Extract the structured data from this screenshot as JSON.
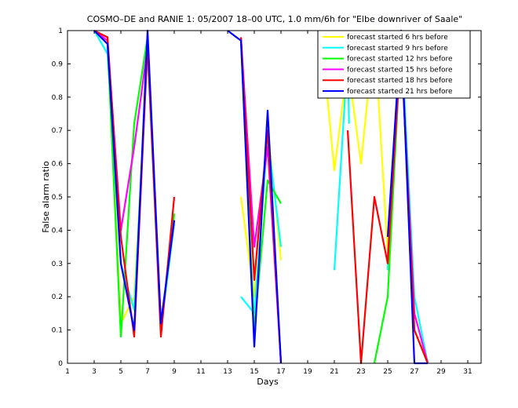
{
  "chart_data": {
    "type": "line",
    "title": "COSMO–DE and RANIE 1: 05/2007 18–00 UTC, 1.0 mm/6h for \"Elbe downriver of Saale\"",
    "xlabel": "Days",
    "ylabel": "False alarm ratio",
    "xlim": [
      1,
      32
    ],
    "ylim": [
      0,
      1
    ],
    "xticks": [
      "1",
      "3",
      "5",
      "7",
      "9",
      "11",
      "13",
      "15",
      "17",
      "19",
      "21",
      "23",
      "25",
      "27",
      "29",
      "31"
    ],
    "yticks": [
      "0",
      "0.1",
      "0.2",
      "0.3",
      "0.4",
      "0.5",
      "0.6",
      "0.7",
      "0.8",
      "0.9",
      "1"
    ],
    "legend_position": "top-right",
    "series": [
      {
        "name": "forecast started 6 hrs before",
        "color": "#ffff00",
        "segments": [
          [
            [
              3,
              1
            ],
            [
              4,
              0.97
            ],
            [
              5,
              0.12
            ],
            [
              6,
              0.2
            ],
            [
              7,
              0.93
            ],
            [
              8,
              0.1
            ],
            [
              9,
              0.45
            ]
          ],
          [
            [
              14,
              0.5
            ],
            [
              15,
              0.2
            ],
            [
              16,
              0.72
            ],
            [
              17,
              0.31
            ]
          ],
          [
            [
              20,
              1
            ],
            [
              21,
              0.58
            ],
            [
              22,
              0.9
            ],
            [
              23,
              0.6
            ],
            [
              24,
              1
            ],
            [
              25,
              0.33
            ],
            [
              26,
              1
            ],
            [
              27,
              0.2
            ],
            [
              28,
              0
            ]
          ]
        ]
      },
      {
        "name": "forecast started 9 hrs before",
        "color": "#00ffff",
        "segments": [
          [
            [
              3,
              1
            ],
            [
              4,
              0.93
            ],
            [
              5,
              0.3
            ],
            [
              6,
              0.16
            ],
            [
              7,
              0.94
            ],
            [
              8,
              0.1
            ],
            [
              9,
              0.42
            ]
          ],
          [
            [
              14,
              0.2
            ],
            [
              15,
              0.15
            ],
            [
              16,
              0.68
            ],
            [
              17,
              0.35
            ]
          ],
          [
            [
              21,
              0.28
            ],
            [
              22,
              0.93
            ],
            [
              22.1,
              0.72
            ]
          ],
          [
            [
              25,
              0.28
            ],
            [
              26,
              1
            ],
            [
              27,
              0.2
            ],
            [
              28,
              0
            ]
          ]
        ]
      },
      {
        "name": "forecast started 12 hrs before",
        "color": "#00ff00",
        "segments": [
          [
            [
              3,
              1
            ],
            [
              4,
              0.96
            ],
            [
              5,
              0.08
            ],
            [
              6,
              0.72
            ],
            [
              7,
              0.98
            ],
            [
              8,
              0.1
            ],
            [
              9,
              0.45
            ]
          ],
          [
            [
              14,
              0.97
            ],
            [
              15,
              0.1
            ],
            [
              16,
              0.55
            ],
            [
              17,
              0.48
            ]
          ],
          [
            [
              24,
              0
            ],
            [
              25,
              0.2
            ],
            [
              26,
              0.97
            ],
            [
              27,
              0.1
            ],
            [
              28,
              0
            ]
          ]
        ]
      },
      {
        "name": "forecast started 15 hrs before",
        "color": "#ff00ff",
        "segments": [
          [
            [
              3,
              1
            ],
            [
              4,
              0.97
            ],
            [
              5,
              0.4
            ],
            [
              6,
              0.65
            ],
            [
              7,
              0.95
            ],
            [
              8,
              0.12
            ],
            [
              9,
              0.43
            ]
          ],
          [
            [
              14,
              0.98
            ],
            [
              15,
              0.35
            ],
            [
              16,
              0.65
            ],
            [
              17,
              0
            ]
          ],
          [
            [
              25,
              0.32
            ],
            [
              26,
              0.95
            ],
            [
              27,
              0.15
            ],
            [
              28,
              0
            ]
          ]
        ]
      },
      {
        "name": "forecast started 18 hrs before",
        "color": "#ff0000",
        "segments": [
          [
            [
              3,
              1
            ],
            [
              4,
              0.98
            ],
            [
              5,
              0.38
            ],
            [
              6,
              0.08
            ],
            [
              7,
              0.96
            ],
            [
              8,
              0.08
            ],
            [
              9,
              0.5
            ]
          ],
          [
            [
              14,
              0.98
            ],
            [
              15,
              0.25
            ],
            [
              16,
              0.7
            ],
            [
              17,
              0
            ]
          ],
          [
            [
              22,
              0.7
            ],
            [
              23,
              0
            ],
            [
              24,
              0.5
            ],
            [
              25,
              0.3
            ],
            [
              26,
              0.98
            ],
            [
              27,
              0.1
            ],
            [
              28,
              0
            ]
          ]
        ]
      },
      {
        "name": "forecast started 21 hrs before",
        "color": "#0000ff",
        "segments": [
          [
            [
              3,
              1
            ],
            [
              4,
              0.96
            ],
            [
              5,
              0.3
            ],
            [
              6,
              0.1
            ],
            [
              7,
              1
            ],
            [
              8,
              0.12
            ],
            [
              9,
              0.43
            ]
          ],
          [
            [
              13,
              1
            ],
            [
              14,
              0.97
            ],
            [
              15,
              0.05
            ],
            [
              16,
              0.76
            ],
            [
              17,
              0
            ]
          ],
          [
            [
              25,
              0.38
            ],
            [
              26,
              1
            ],
            [
              27,
              0
            ],
            [
              28,
              0
            ]
          ]
        ]
      }
    ]
  }
}
